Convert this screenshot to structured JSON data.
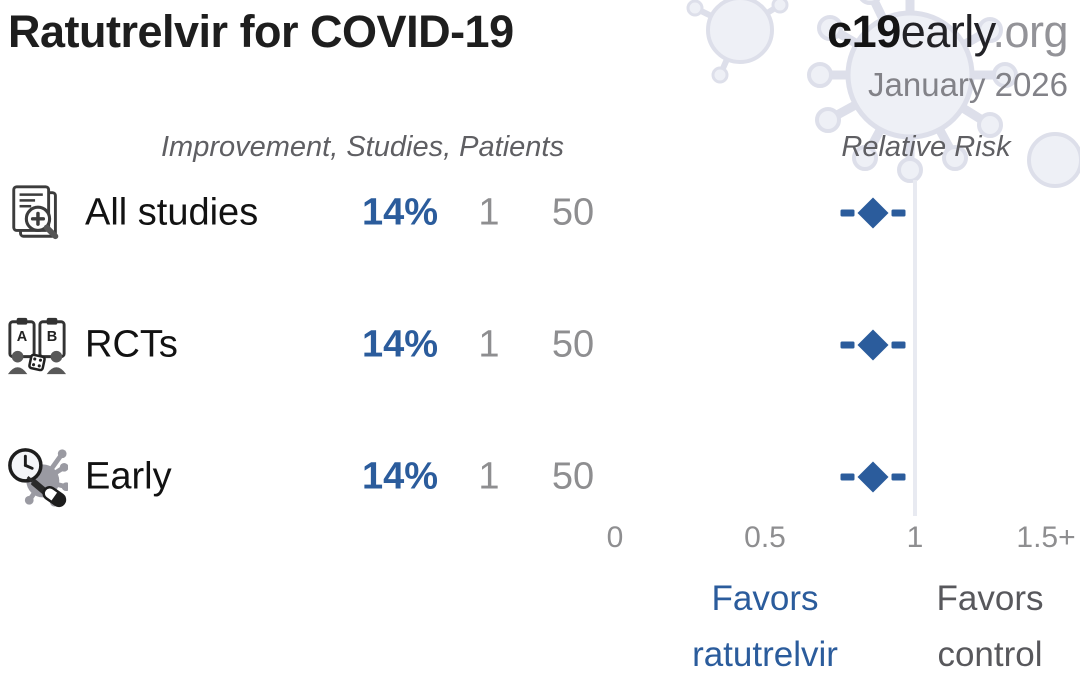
{
  "header": {
    "title": "Ratutrelvir for COVID-19",
    "logo": {
      "bold": "c19",
      "mid": "early",
      "suffix": ".org"
    },
    "date": "January 2026"
  },
  "table": {
    "columns_header": "Improvement, Studies, Patients",
    "rr_header": "Relative Risk",
    "rows": [
      {
        "label": "All studies",
        "improvement": "14%",
        "studies": "1",
        "patients": "50"
      },
      {
        "label": "RCTs",
        "improvement": "14%",
        "studies": "1",
        "patients": "50"
      },
      {
        "label": "Early",
        "improvement": "14%",
        "studies": "1",
        "patients": "50"
      }
    ]
  },
  "icons": {
    "all_studies": "documents-with-magnifier-plus-icon",
    "rcts": "ab-clipboards-people-dice-icon",
    "rcts_letter_a": "A",
    "rcts_letter_b": "B",
    "early": "clock-virus-syringe-pill-icon"
  },
  "footer": {
    "favors_left_line1": "Favors",
    "favors_left_line2": "ratutrelvir",
    "favors_right_line1": "Favors",
    "favors_right_line2": "control"
  },
  "colors": {
    "accent_blue": "#2b5c9c",
    "muted_gray": "#8e8e90",
    "reference_line": "#e8eaf1",
    "title_text": "#1e1e1e"
  },
  "chart_data": {
    "type": "scatter",
    "subtype": "forest-plot",
    "title": "Ratutrelvir for COVID-19",
    "source": "c19early.org",
    "date": "January 2026",
    "xlabel": "Relative Risk",
    "rows": [
      {
        "label": "All studies",
        "rr": 0.86,
        "improvement_pct": 14,
        "studies": 1,
        "patients": 50
      },
      {
        "label": "RCTs",
        "rr": 0.86,
        "improvement_pct": 14,
        "studies": 1,
        "patients": 50
      },
      {
        "label": "Early",
        "rr": 0.86,
        "improvement_pct": 14,
        "studies": 1,
        "patients": 50
      }
    ],
    "axis": {
      "ticks": [
        "0",
        "0.5",
        "1",
        "1.5+"
      ],
      "tick_values": [
        0,
        0.5,
        1,
        1.5
      ],
      "xlim": [
        0,
        1.55
      ],
      "reference_line_at": 1,
      "grid": false
    },
    "favors_left_label": "Favors ratutrelvir",
    "favors_right_label": "Favors control",
    "marker": "diamond-with-dashed-ci",
    "marker_color": "#2b5c9c"
  }
}
